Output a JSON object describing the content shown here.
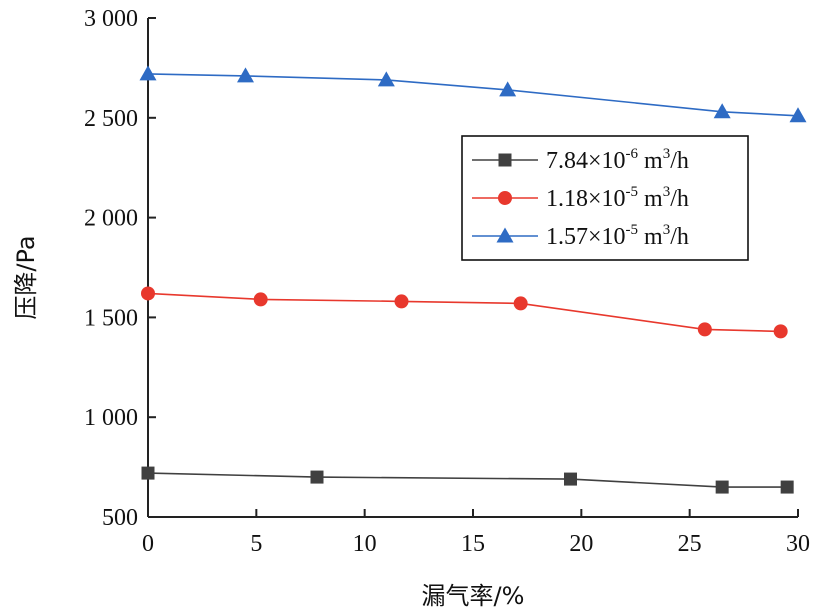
{
  "chart_data": {
    "type": "line",
    "xlabel": "漏气率/%",
    "ylabel": "压降/Pa",
    "xlim": [
      0,
      30
    ],
    "ylim": [
      500,
      3000
    ],
    "x_ticks": [
      "0",
      "5",
      "10",
      "15",
      "20",
      "25",
      "30"
    ],
    "y_ticks": [
      "500",
      "1 000",
      "1 500",
      "2 000",
      "2 500",
      "3 000"
    ],
    "grid": false,
    "legend_position": "right",
    "series": [
      {
        "name": "7.84×10-6 m3/h",
        "legend_base": "7.84×10",
        "legend_exp": "-6",
        "legend_unit": " m",
        "legend_unit_exp": "3",
        "legend_tail": "/h",
        "color": "#404040",
        "marker": "square",
        "points": [
          [
            0,
            720
          ],
          [
            7.8,
            700
          ],
          [
            19.5,
            690
          ],
          [
            26.5,
            650
          ],
          [
            29.5,
            650
          ]
        ]
      },
      {
        "name": "1.18×10-5 m3/h",
        "legend_base": "1.18×10",
        "legend_exp": "-5",
        "legend_unit": " m",
        "legend_unit_exp": "3",
        "legend_tail": "/h",
        "color": "#e8382d",
        "marker": "circle",
        "points": [
          [
            0,
            1620
          ],
          [
            5.2,
            1590
          ],
          [
            11.7,
            1580
          ],
          [
            17.2,
            1570
          ],
          [
            25.7,
            1440
          ],
          [
            29.2,
            1430
          ]
        ]
      },
      {
        "name": "1.57×10-5 m3/h",
        "legend_base": "1.57×10",
        "legend_exp": "-5",
        "legend_unit": " m",
        "legend_unit_exp": "3",
        "legend_tail": "/h",
        "color": "#2e6bc4",
        "marker": "triangle",
        "points": [
          [
            0,
            2720
          ],
          [
            4.5,
            2710
          ],
          [
            11,
            2690
          ],
          [
            16.6,
            2640
          ],
          [
            26.5,
            2530
          ],
          [
            30,
            2510
          ]
        ]
      }
    ]
  }
}
